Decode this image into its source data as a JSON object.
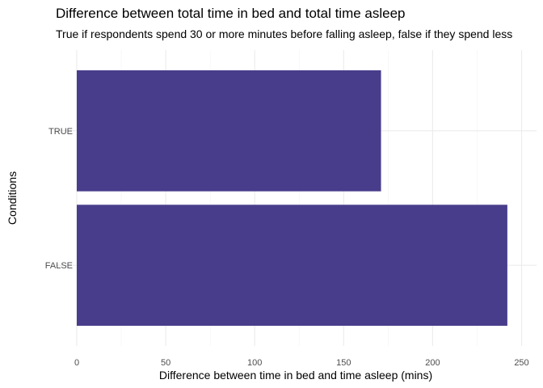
{
  "chart_data": {
    "type": "bar",
    "orientation": "horizontal",
    "title": "Difference between total time in bed and total time asleep",
    "subtitle": "True if respondents spend 30 or more minutes before falling asleep, false if they spend less",
    "xlabel": "Difference between time in bed and time asleep (mins)",
    "ylabel": "Conditions",
    "categories": [
      "FALSE",
      "TRUE"
    ],
    "values": [
      242,
      171
    ],
    "xlim": [
      0,
      254
    ],
    "xticks": [
      0,
      50,
      100,
      150,
      200,
      250
    ],
    "bar_color": "#483D8B",
    "grid": true,
    "legend": "none"
  }
}
